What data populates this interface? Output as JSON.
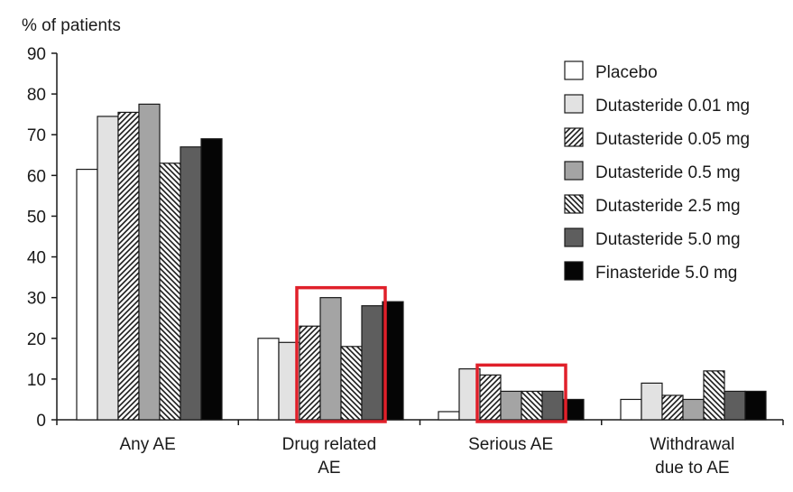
{
  "chart_data": {
    "type": "bar",
    "ylabel": "% of patients",
    "ylim": [
      0,
      90
    ],
    "yticks": [
      0,
      10,
      20,
      30,
      40,
      50,
      60,
      70,
      80,
      90
    ],
    "grid": false,
    "legend_position": "top-right",
    "categories": [
      [
        "Any AE"
      ],
      [
        "Drug related",
        "AE"
      ],
      [
        "Serious AE"
      ],
      [
        "Withdrawal",
        "due to AE"
      ]
    ],
    "series": [
      {
        "name": "Placebo",
        "fill": "white",
        "values": [
          61.5,
          20,
          2,
          5
        ]
      },
      {
        "name": "Dutasteride 0.01 mg",
        "fill": "lightgray",
        "values": [
          74.5,
          19,
          12.5,
          9
        ]
      },
      {
        "name": "Dutasteride 0.05 mg",
        "fill": "hatch-forward",
        "values": [
          75.5,
          23,
          11,
          6
        ]
      },
      {
        "name": "Dutasteride 0.5 mg",
        "fill": "midgray",
        "values": [
          77.5,
          30,
          7,
          5
        ]
      },
      {
        "name": "Dutasteride 2.5 mg",
        "fill": "hatch-back",
        "values": [
          63,
          18,
          7,
          12
        ]
      },
      {
        "name": "Dutasteride 5.0 mg",
        "fill": "darkgray",
        "values": [
          67,
          28,
          7,
          7
        ]
      },
      {
        "name": "Finasteride 5.0 mg",
        "fill": "black",
        "values": [
          69,
          29,
          5,
          7
        ]
      }
    ],
    "highlights": [
      {
        "category_index": 1,
        "series_from": 2,
        "series_to": 5,
        "color": "#e0202a"
      },
      {
        "category_index": 2,
        "series_from": 2,
        "series_to": 5,
        "color": "#e0202a"
      }
    ]
  }
}
